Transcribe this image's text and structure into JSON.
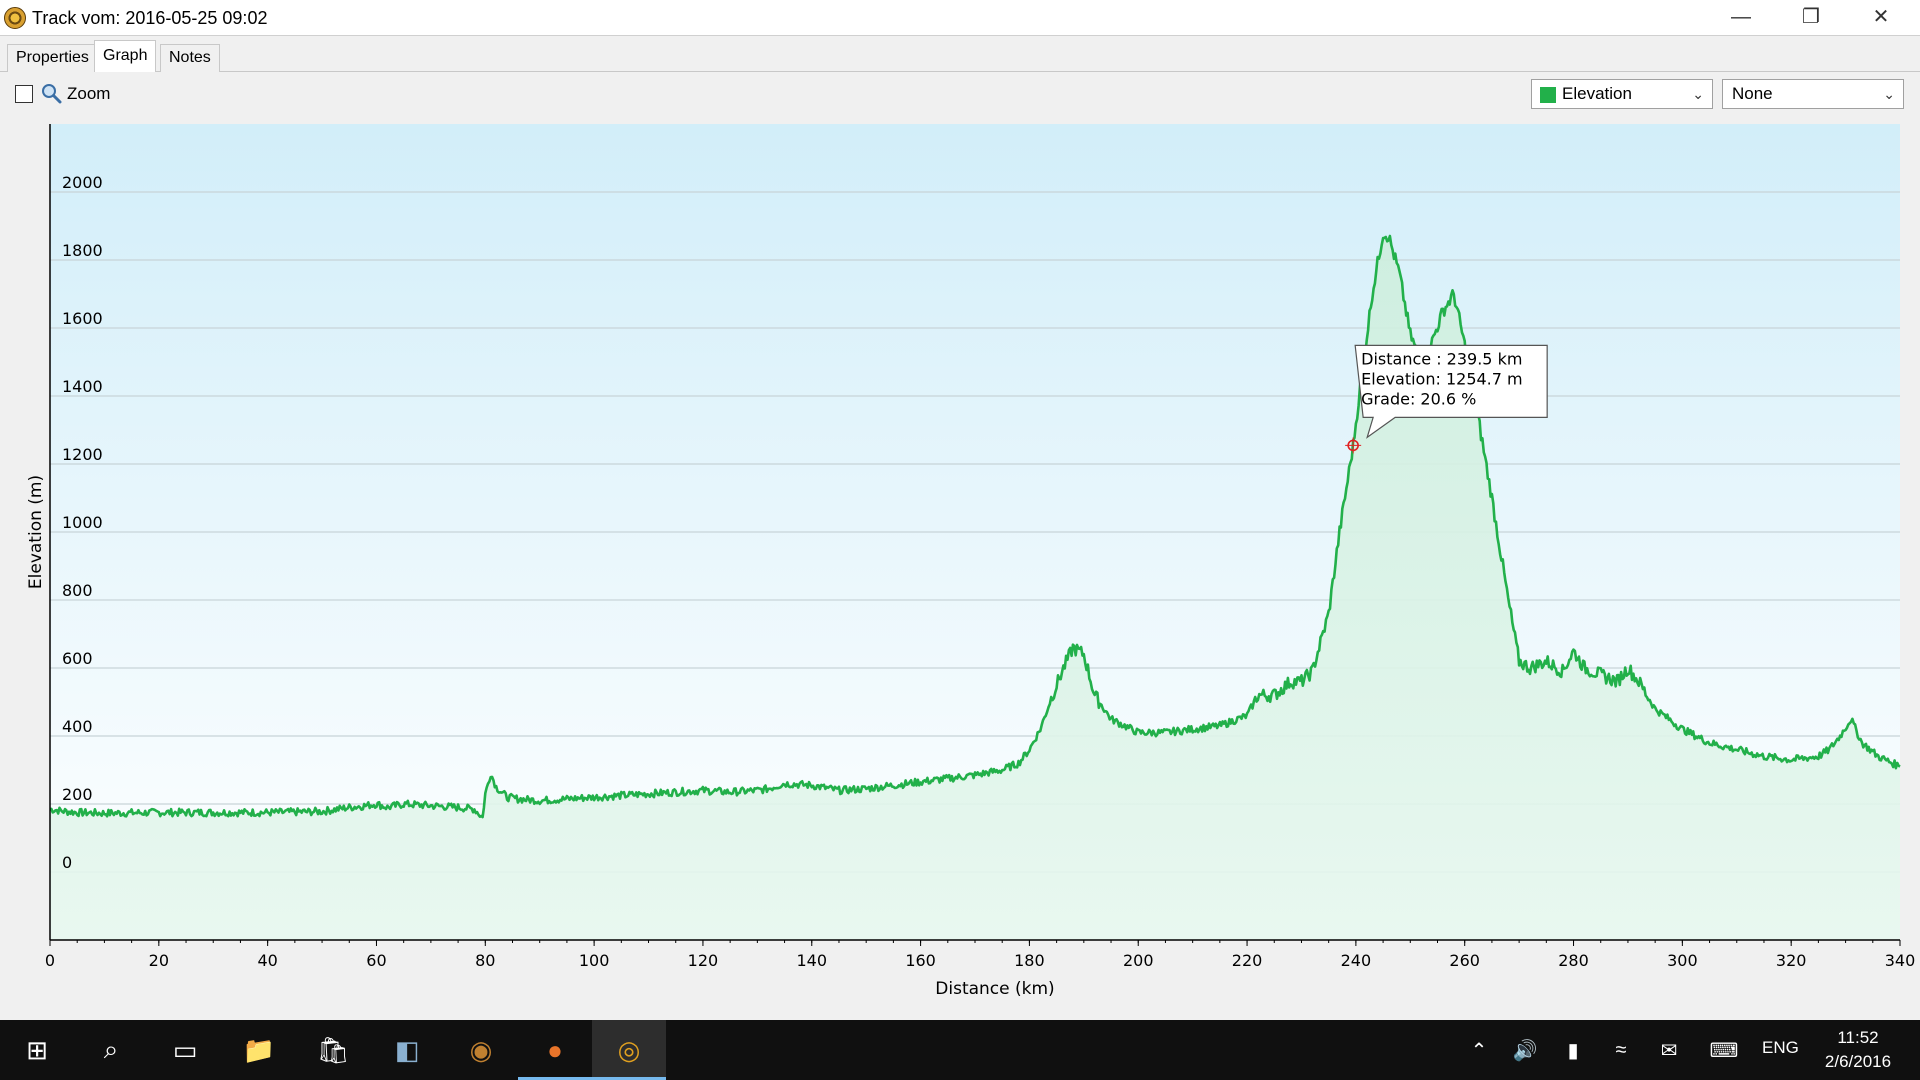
{
  "window": {
    "title": "Track vom: 2016-05-25 09:02",
    "minimize_glyph": "—",
    "maximize_glyph": "❐",
    "close_glyph": "✕"
  },
  "tabs": [
    {
      "label": "Properties"
    },
    {
      "label": "Graph"
    },
    {
      "label": "Notes"
    }
  ],
  "toolbar": {
    "zoom_label": "Zoom",
    "zoom_checked": false,
    "primary_select": {
      "value": "Elevation",
      "color": "#22b04a"
    },
    "secondary_select": {
      "value": "None"
    }
  },
  "chart_data": {
    "type": "area",
    "xlabel": "Distance  (km)",
    "ylabel": "Elevation (m)",
    "xlim": [
      0,
      340
    ],
    "ylim": [
      -200,
      2200
    ],
    "x_ticks": [
      0,
      20,
      40,
      60,
      80,
      100,
      120,
      140,
      160,
      180,
      200,
      220,
      240,
      260,
      280,
      300,
      320,
      340
    ],
    "y_ticks": [
      0,
      200,
      400,
      600,
      800,
      1000,
      1200,
      1400,
      1600,
      1800,
      2000
    ],
    "grid": true,
    "line_color": "#22b04a",
    "series": [
      {
        "name": "Elevation",
        "x": [
          0,
          2,
          5,
          10,
          20,
          30,
          40,
          50,
          55,
          58,
          60,
          62,
          65,
          70,
          75,
          78,
          79.5,
          80,
          81,
          82,
          84,
          86,
          90,
          95,
          100,
          105,
          110,
          115,
          120,
          125,
          130,
          132,
          135,
          140,
          145,
          150,
          155,
          160,
          165,
          170,
          175,
          178,
          180,
          182,
          184,
          186,
          188,
          190,
          192,
          195,
          200,
          205,
          210,
          215,
          220,
          222,
          225,
          228,
          230,
          232,
          235,
          237,
          239.5,
          241,
          243,
          245,
          246,
          248,
          250,
          252,
          254,
          256,
          258,
          260,
          262,
          265,
          268,
          270,
          272,
          275,
          278,
          280,
          282,
          285,
          288,
          290,
          292,
          295,
          300,
          305,
          310,
          315,
          320,
          325,
          327,
          329,
          331,
          333,
          336,
          340
        ],
        "y": [
          185,
          180,
          175,
          173,
          175,
          175,
          175,
          178,
          190,
          195,
          200,
          190,
          200,
          195,
          190,
          185,
          160,
          230,
          290,
          250,
          220,
          215,
          210,
          215,
          220,
          225,
          230,
          235,
          240,
          235,
          240,
          245,
          260,
          255,
          240,
          245,
          255,
          265,
          275,
          285,
          300,
          320,
          360,
          420,
          510,
          590,
          660,
          640,
          520,
          450,
          410,
          410,
          420,
          430,
          460,
          520,
          520,
          560,
          560,
          590,
          760,
          1000,
          1254.7,
          1450,
          1700,
          1880,
          1870,
          1760,
          1580,
          1500,
          1560,
          1650,
          1700,
          1550,
          1380,
          1100,
          800,
          620,
          600,
          620,
          590,
          650,
          600,
          580,
          560,
          600,
          560,
          480,
          420,
          380,
          360,
          340,
          330,
          340,
          360,
          400,
          450,
          380,
          340,
          310
        ]
      }
    ],
    "tooltip": {
      "distance_label": "Distance",
      "distance_value": "239.5 km",
      "elevation_label": "Elevation",
      "elevation_value": "1254.7 m",
      "grade_label": "Grade",
      "grade_value": "20.6 %",
      "point_x": 239.5,
      "point_y": 1254.7
    }
  },
  "taskbar": {
    "icons": [
      {
        "name": "windows-start-icon",
        "glyph": "⊞"
      },
      {
        "name": "search-icon",
        "glyph": "⌕"
      },
      {
        "name": "task-view-icon",
        "glyph": "▭"
      },
      {
        "name": "file-explorer-icon",
        "glyph": "📁"
      },
      {
        "name": "store-icon",
        "glyph": "🛍"
      },
      {
        "name": "app-icon-1",
        "glyph": "◧"
      },
      {
        "name": "speaker-app-icon",
        "glyph": "◉"
      },
      {
        "name": "firefox-icon",
        "glyph": "●"
      },
      {
        "name": "track-app-icon",
        "glyph": "◎"
      }
    ],
    "language": "ENG",
    "time": "11:52",
    "date": "2/6/2016"
  }
}
